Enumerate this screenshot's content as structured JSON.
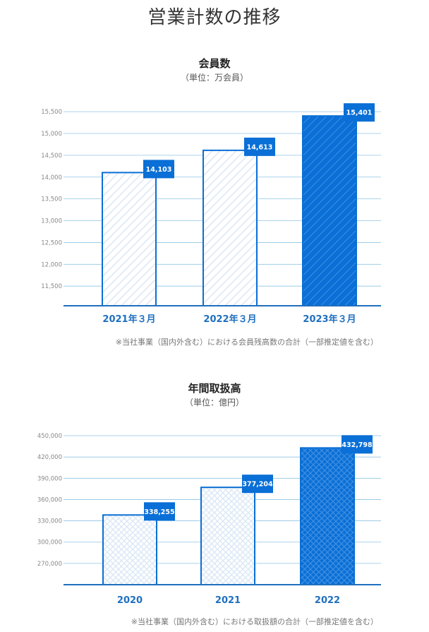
{
  "page_title": "営業計数の推移",
  "charts": [
    {
      "title": "会員数",
      "unit": "（単位：万会員）",
      "note": "※当社事業（国内外含む）における会員残高数の合計（一部推定値を含む）"
    },
    {
      "title": "年間取扱高",
      "unit": "（単位：億円）",
      "note": "※当社事業（国内外含む）における取扱額の合計（一部推定値を含む）"
    }
  ],
  "chart_data": [
    {
      "type": "bar",
      "title": "会員数",
      "subtitle": "（単位：万会員）",
      "categories": [
        "2021年３月",
        "2022年３月",
        "2023年３月"
      ],
      "values": [
        14103,
        14613,
        15401
      ],
      "value_labels": [
        "14,103",
        "14,613",
        "15,401"
      ],
      "yticks": [
        11500,
        12000,
        12500,
        13000,
        13500,
        14000,
        14500,
        15000,
        15500
      ],
      "ytick_labels": [
        "11,500",
        "12,000",
        "12,500",
        "13,000",
        "13,500",
        "14,000",
        "14,500",
        "15,000",
        "15,500"
      ],
      "ylim": [
        11050,
        15550
      ],
      "grid": true,
      "pattern": "diagonal-stripes",
      "colors": {
        "bar": "#0a6fd6",
        "light_fill": "#dbe8f6",
        "grid": "#8fc5e4",
        "axis": "#1f6fbf",
        "label_bg": "#0a6fd6"
      }
    },
    {
      "type": "bar",
      "title": "年間取扱高",
      "subtitle": "（単位：億円）",
      "categories": [
        "2020",
        "2021",
        "2022"
      ],
      "values": [
        338255,
        377204,
        432798
      ],
      "value_labels": [
        "338,255",
        "377,204",
        "432,798"
      ],
      "yticks": [
        270000,
        300000,
        330000,
        360000,
        390000,
        420000,
        450000
      ],
      "ytick_labels": [
        "270,000",
        "300,000",
        "330,000",
        "360,000",
        "390,000",
        "420,000",
        "450,000"
      ],
      "ylim": [
        240000,
        455000
      ],
      "grid": true,
      "pattern": "cross-hatch",
      "colors": {
        "bar": "#0a6fd6",
        "light_fill": "#dbe8f6",
        "grid": "#8fc5e4",
        "axis": "#1f6fbf",
        "label_bg": "#0a6fd6"
      }
    }
  ]
}
